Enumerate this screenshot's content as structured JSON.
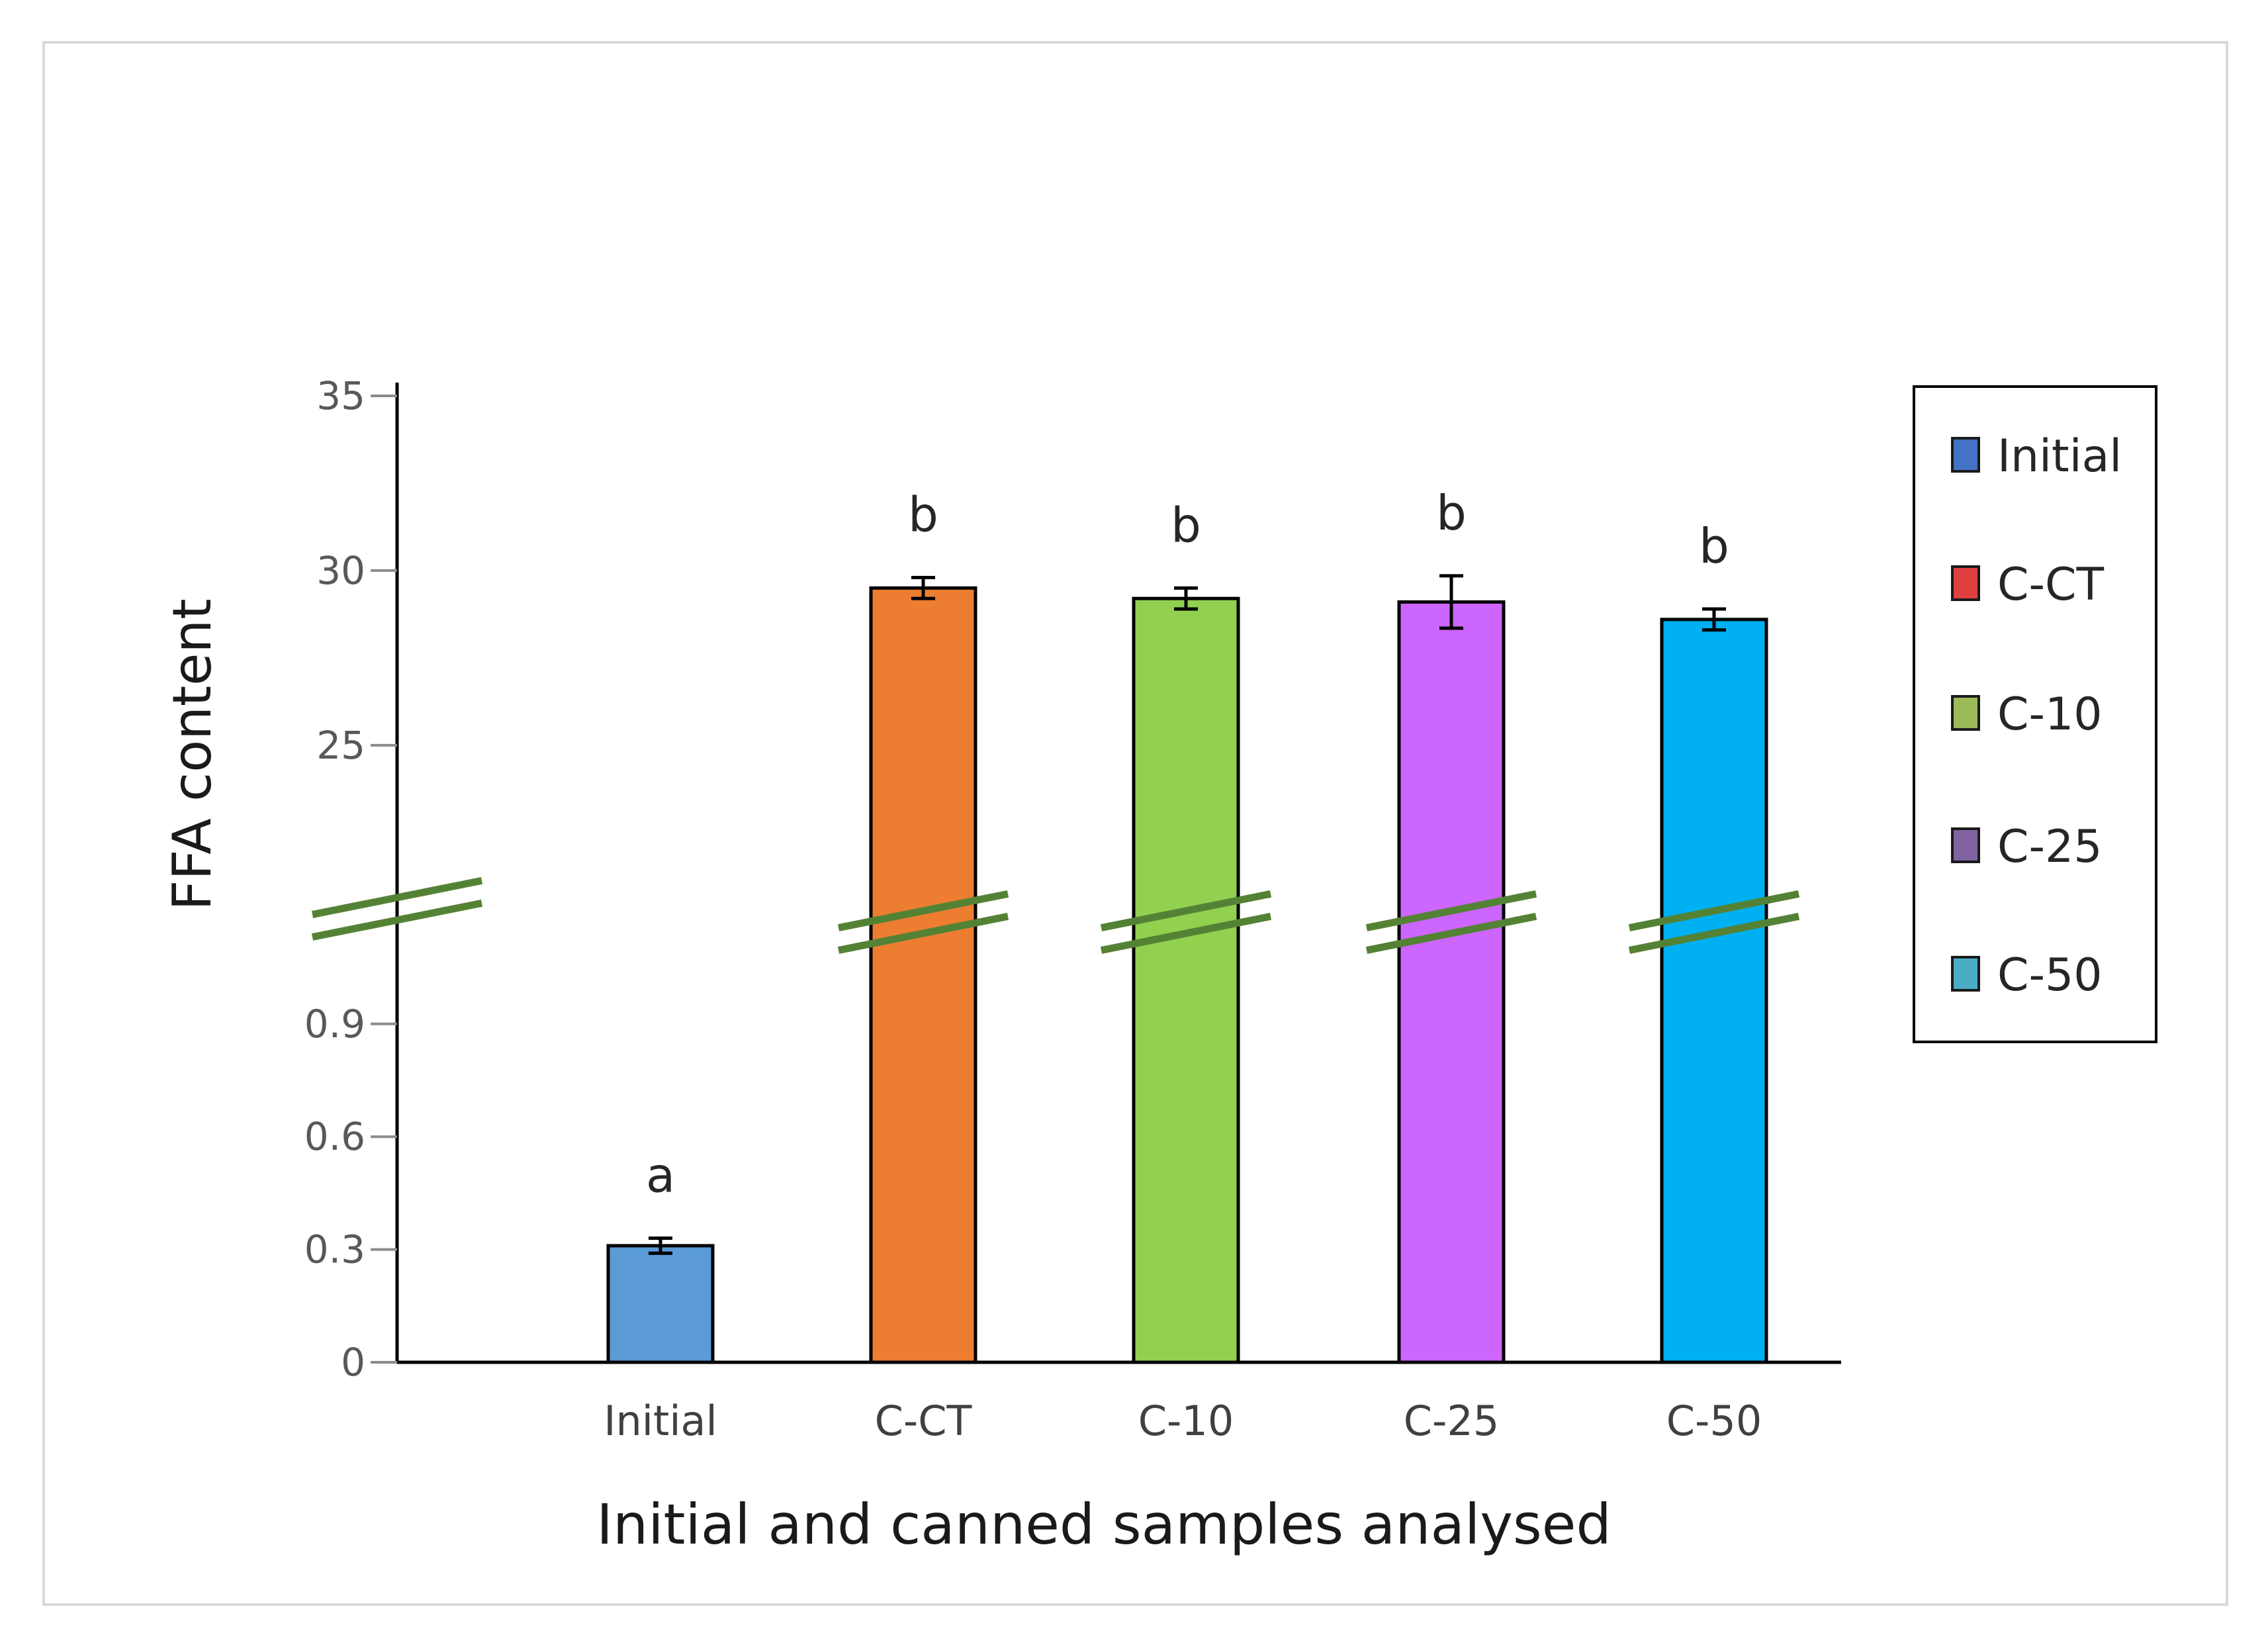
{
  "chart_data": {
    "type": "bar",
    "title": "",
    "xlabel": "Initial and canned samples analysed",
    "ylabel": "FFA content",
    "categories": [
      "Initial",
      "C-CT",
      "C-10",
      "C-25",
      "C-50"
    ],
    "values": [
      0.31,
      29.5,
      29.2,
      29.1,
      28.6
    ],
    "errors": [
      0.02,
      0.3,
      0.3,
      0.75,
      0.3
    ],
    "significance": [
      "a",
      "b",
      "b",
      "b",
      "b"
    ],
    "colors": [
      "#5b9bd5",
      "#ed7d31",
      "#92d050",
      "#cc66ff",
      "#00b0f0"
    ],
    "axis_break": true,
    "lower_axis": {
      "range": [
        0,
        1.0
      ],
      "ticks": [
        0,
        0.3,
        0.6,
        0.9
      ],
      "tick_labels": [
        "0",
        "0.3",
        "0.6",
        "0.9"
      ]
    },
    "upper_axis": {
      "range": [
        21,
        35
      ],
      "ticks": [
        25,
        30,
        35
      ],
      "tick_labels": [
        "25",
        "30",
        "35"
      ]
    },
    "legend": {
      "position": "right",
      "entries": [
        {
          "label": "Initial",
          "color": "#4472c4"
        },
        {
          "label": "C-CT",
          "color": "#e04040"
        },
        {
          "label": "C-10",
          "color": "#9bbb59"
        },
        {
          "label": "C-25",
          "color": "#8064a2"
        },
        {
          "label": "C-50",
          "color": "#4bacc6"
        }
      ]
    },
    "break_mark_color": "#548235"
  }
}
